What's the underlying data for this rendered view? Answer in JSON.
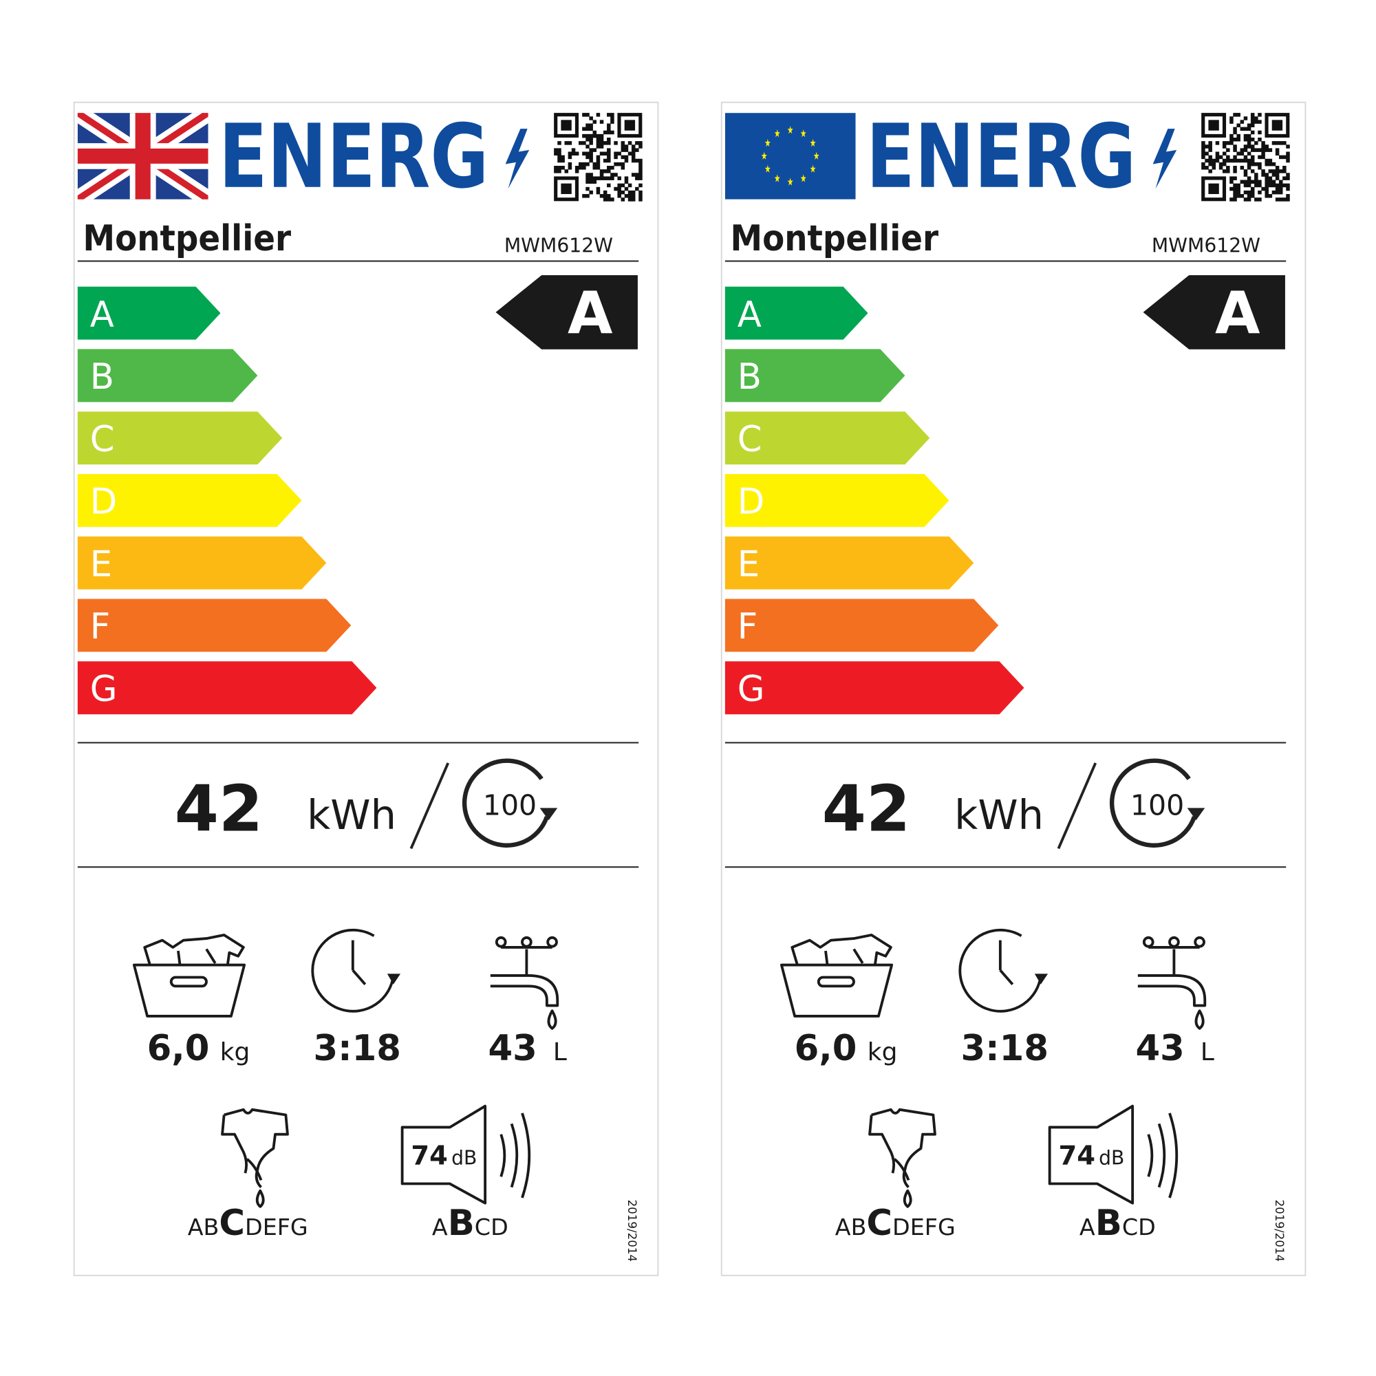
{
  "labels": [
    {
      "header": "ENERG",
      "brand": "Montpellier",
      "model": "MWM612W",
      "classes": [
        "A",
        "B",
        "C",
        "D",
        "E",
        "F",
        "G"
      ],
      "rating": "A",
      "energy": 42,
      "energy_unit": "kWh",
      "cycles": 100,
      "capacity": "6,0",
      "capacity_unit": "kg",
      "duration": "3:18",
      "water": 43,
      "water_unit": "L",
      "spin_classes": {
        "before": "AB",
        "rated": "C",
        "after": "DEFG"
      },
      "noise": 74,
      "noise_unit": "dB",
      "noise_classes": {
        "before": "A",
        "rated": "B",
        "after": "CD"
      },
      "regulation": "2019/2014"
    },
    {
      "header": "ENERG",
      "brand": "Montpellier",
      "model": "MWM612W",
      "classes": [
        "A",
        "B",
        "C",
        "D",
        "E",
        "F",
        "G"
      ],
      "rating": "A",
      "energy": 42,
      "energy_unit": "kWh",
      "cycles": 100,
      "capacity": "6,0",
      "capacity_unit": "kg",
      "duration": "3:18",
      "water": 43,
      "water_unit": "L",
      "spin_classes": {
        "before": "AB",
        "rated": "C",
        "after": "DEFG"
      },
      "noise": 74,
      "noise_unit": "dB",
      "noise_classes": {
        "before": "A",
        "rated": "B",
        "after": "CD"
      },
      "regulation": "2019/2014"
    }
  ]
}
